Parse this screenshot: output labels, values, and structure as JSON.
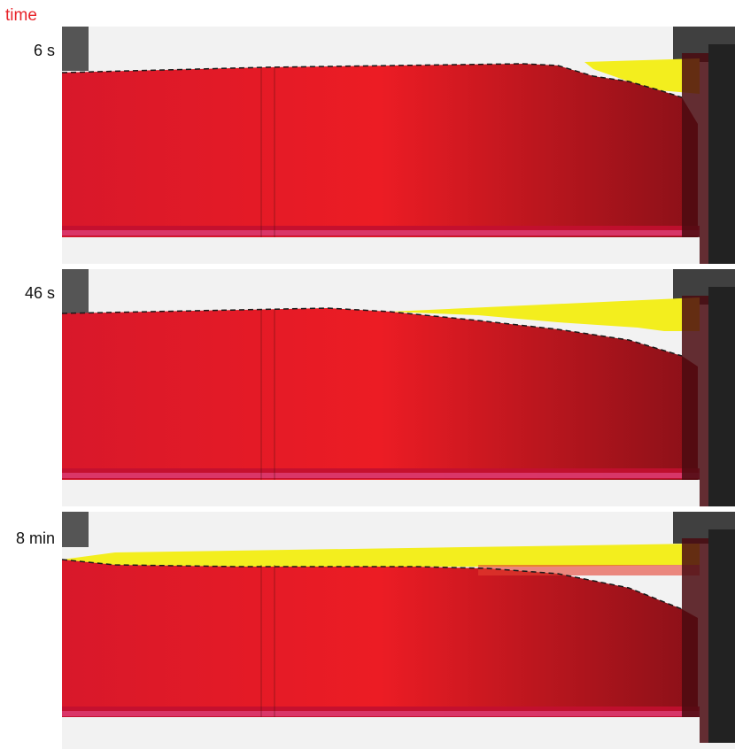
{
  "header": {
    "label": "time",
    "color": "#e8242a"
  },
  "colors": {
    "red_fluid": "#ec1c24",
    "red_dark": "#7a0d12",
    "yellow_fluid": "#f3ee1e",
    "background": "#f2f2f2",
    "interface_line": "#1a1a1a"
  },
  "frames": [
    {
      "time": "6 s"
    },
    {
      "time": "46 s"
    },
    {
      "time": "8 min"
    }
  ]
}
